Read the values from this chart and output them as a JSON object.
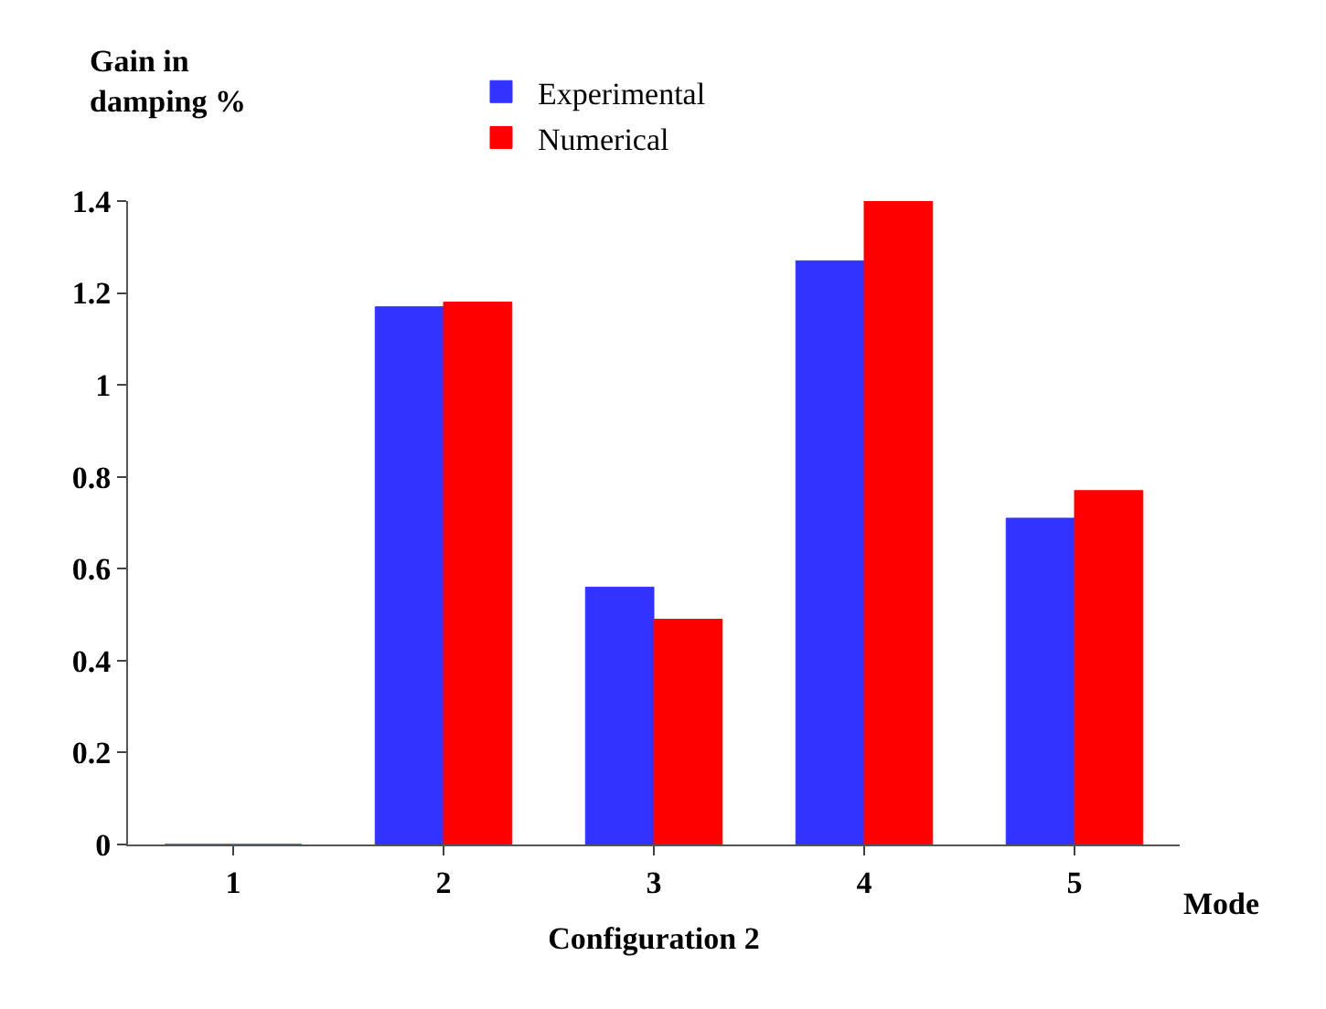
{
  "chart_data": {
    "type": "bar",
    "ylabel": "Gain in damping %",
    "xlabel": "Configuration 2",
    "categories": [
      "1",
      "2",
      "3",
      "4",
      "5"
    ],
    "series": [
      {
        "name": "Experimental",
        "color": "#3333ff",
        "values": [
          0,
          1.17,
          0.56,
          1.27,
          0.71
        ]
      },
      {
        "name": "Numerical",
        "color": "#ff0000",
        "values": [
          0,
          1.18,
          0.49,
          1.4,
          0.77
        ]
      }
    ],
    "ylim": [
      0,
      1.4
    ],
    "yticks": [
      0,
      0.2,
      0.4,
      0.6,
      0.8,
      1,
      1.2,
      1.4
    ],
    "annotations": [
      "Mode"
    ],
    "legend": "top"
  }
}
